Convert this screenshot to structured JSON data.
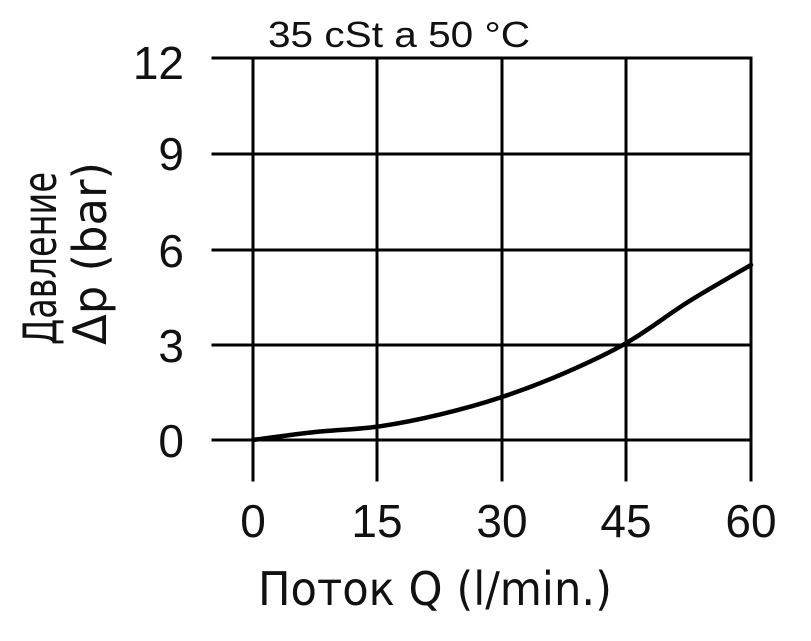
{
  "chart_data": {
    "type": "line",
    "title": "35 cSt a 50 °C",
    "xlabel": "Поток Q  (l/min.)",
    "ylabel": "Давление Δp (bar)",
    "ylabel_lines": [
      "Давление",
      "Δp (bar)"
    ],
    "xticks": [
      "0",
      "15",
      "30",
      "45",
      "60"
    ],
    "yticks": [
      "0",
      "3",
      "6",
      "9",
      "12"
    ],
    "xlim": [
      0,
      60
    ],
    "ylim": [
      0,
      12
    ],
    "grid": true,
    "legend": null,
    "x": [
      0,
      7.5,
      15,
      22.5,
      30,
      37.5,
      45,
      52.5,
      60
    ],
    "series": [
      {
        "name": "Δp",
        "values": [
          0,
          0.25,
          0.42,
          0.8,
          1.35,
          2.1,
          3.05,
          4.35,
          5.5
        ]
      }
    ],
    "colors": {
      "line": "#000000",
      "grid": "#000000",
      "background": "#ffffff"
    }
  }
}
